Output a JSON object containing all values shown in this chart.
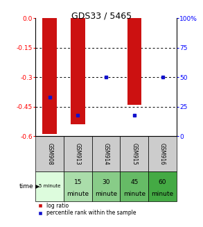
{
  "title": "GDS33 / 5465",
  "samples": [
    "GSM908",
    "GSM913",
    "GSM914",
    "GSM915",
    "GSM916"
  ],
  "time_labels_line1": [
    "5 minute",
    "15",
    "30",
    "45",
    "60"
  ],
  "time_labels_line2": [
    "",
    "minute",
    "minute",
    "minute",
    "minute"
  ],
  "time_small_font": [
    true,
    false,
    false,
    false,
    false
  ],
  "log_ratios": [
    -0.59,
    -0.54,
    0.0,
    -0.44,
    0.0
  ],
  "percentile_ranks": [
    33,
    18,
    50,
    18,
    50
  ],
  "ylim_min": -0.6,
  "ylim_max": 0.0,
  "yticks_left": [
    0.0,
    -0.15,
    -0.3,
    -0.45,
    -0.6
  ],
  "yticks_right": [
    100,
    75,
    50,
    25,
    0
  ],
  "bar_color": "#cc1111",
  "pct_color": "#1111cc",
  "bg_color": "#ffffff",
  "sample_header_bg": "#cccccc",
  "time_bg_colors": [
    "#ddfcdd",
    "#aaddaa",
    "#88cc88",
    "#66bb66",
    "#44aa44"
  ],
  "bar_width": 0.5
}
